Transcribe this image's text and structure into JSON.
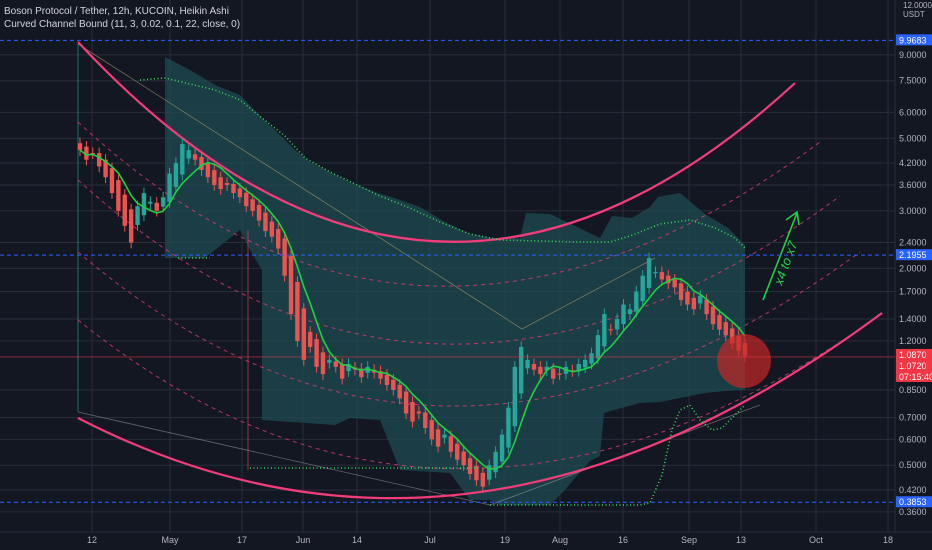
{
  "legend": {
    "title": "Boson Protocol / Tether, 12h, KUCOIN, Heikin Ashi",
    "indicator": "Curved Channel Bound (11, 3, 0.02, 0.1, 22, close, 0)"
  },
  "axis": {
    "currency_top": "12.0000",
    "currency": "USDT"
  },
  "annotation": {
    "text": "x4 to x7"
  },
  "colors": {
    "background": "#131722",
    "bull": "#26a69a",
    "bear": "#ef5350",
    "band": "#1f4b52",
    "curve": "#f23d7a",
    "ma": "#22d043",
    "dots": "#3ddc5a",
    "tag": "#2962ff",
    "price_tag": "#f23645"
  },
  "chart_data": {
    "type": "candlestick",
    "title": "Boson Protocol / Tether, 12h, KUCOIN, Heikin Ashi",
    "y_scale": "log",
    "ylim": [
      0.34,
      12.0
    ],
    "x_ticks": [
      "12",
      "May",
      "17",
      "Jun",
      "14",
      "Jul",
      "19",
      "Aug",
      "16",
      "Sep",
      "13",
      "Oct",
      "18"
    ],
    "y_ticks": [
      "9.0000",
      "7.5000",
      "6.0000",
      "5.0000",
      "4.2000",
      "3.6000",
      "3.0000",
      "2.4000",
      "2.0000",
      "1.7000",
      "1.4000",
      "1.2000",
      "0.8500",
      "0.7000",
      "0.6000",
      "0.5000",
      "0.4200",
      "0.3600"
    ],
    "price_tags": [
      {
        "label": "9.9683",
        "value": 9.9683,
        "color": "#2962ff"
      },
      {
        "label": "2.1955",
        "value": 2.1955,
        "color": "#2962ff"
      },
      {
        "label": "0.3853",
        "value": 0.3853,
        "color": "#2962ff"
      },
      {
        "label": "1.0870",
        "value": 1.087,
        "color": "#f23645"
      },
      {
        "label": "1.0720",
        "value": 1.072,
        "color": "#f23645"
      },
      {
        "label": "07:15:40",
        "value": 1.0,
        "color": "#f23645"
      }
    ],
    "dashed_levels": [
      9.9683,
      2.1955,
      0.3853
    ],
    "closes": [
      4.6,
      4.3,
      4.5,
      4.1,
      3.8,
      3.4,
      3.0,
      2.7,
      2.4,
      3.1,
      3.4,
      3.2,
      3.0,
      3.3,
      3.9,
      4.2,
      4.8,
      4.6,
      4.3,
      4.0,
      3.8,
      3.6,
      3.5,
      3.6,
      3.4,
      3.3,
      3.1,
      3.0,
      2.8,
      2.6,
      2.5,
      2.3,
      1.9,
      1.45,
      1.2,
      1.05,
      1.15,
      1.0,
      0.95,
      1.05,
      1.0,
      0.92,
      1.02,
      0.98,
      0.93,
      1.0,
      0.96,
      0.92,
      0.88,
      0.85,
      0.8,
      0.72,
      0.68,
      0.72,
      0.65,
      0.6,
      0.57,
      0.62,
      0.55,
      0.52,
      0.5,
      0.47,
      0.45,
      0.43,
      0.5,
      0.55,
      0.62,
      0.75,
      1.0,
      1.15,
      1.05,
      0.98,
      0.95,
      1.0,
      0.92,
      0.95,
      1.0,
      0.97,
      1.02,
      1.05,
      1.1,
      1.25,
      1.45,
      1.3,
      1.4,
      1.55,
      1.5,
      1.7,
      1.9,
      2.15,
      1.95,
      1.85,
      1.8,
      1.75,
      1.6,
      1.55,
      1.5,
      1.65,
      1.45,
      1.35,
      1.3,
      1.25,
      1.18,
      1.12,
      1.08
    ]
  }
}
